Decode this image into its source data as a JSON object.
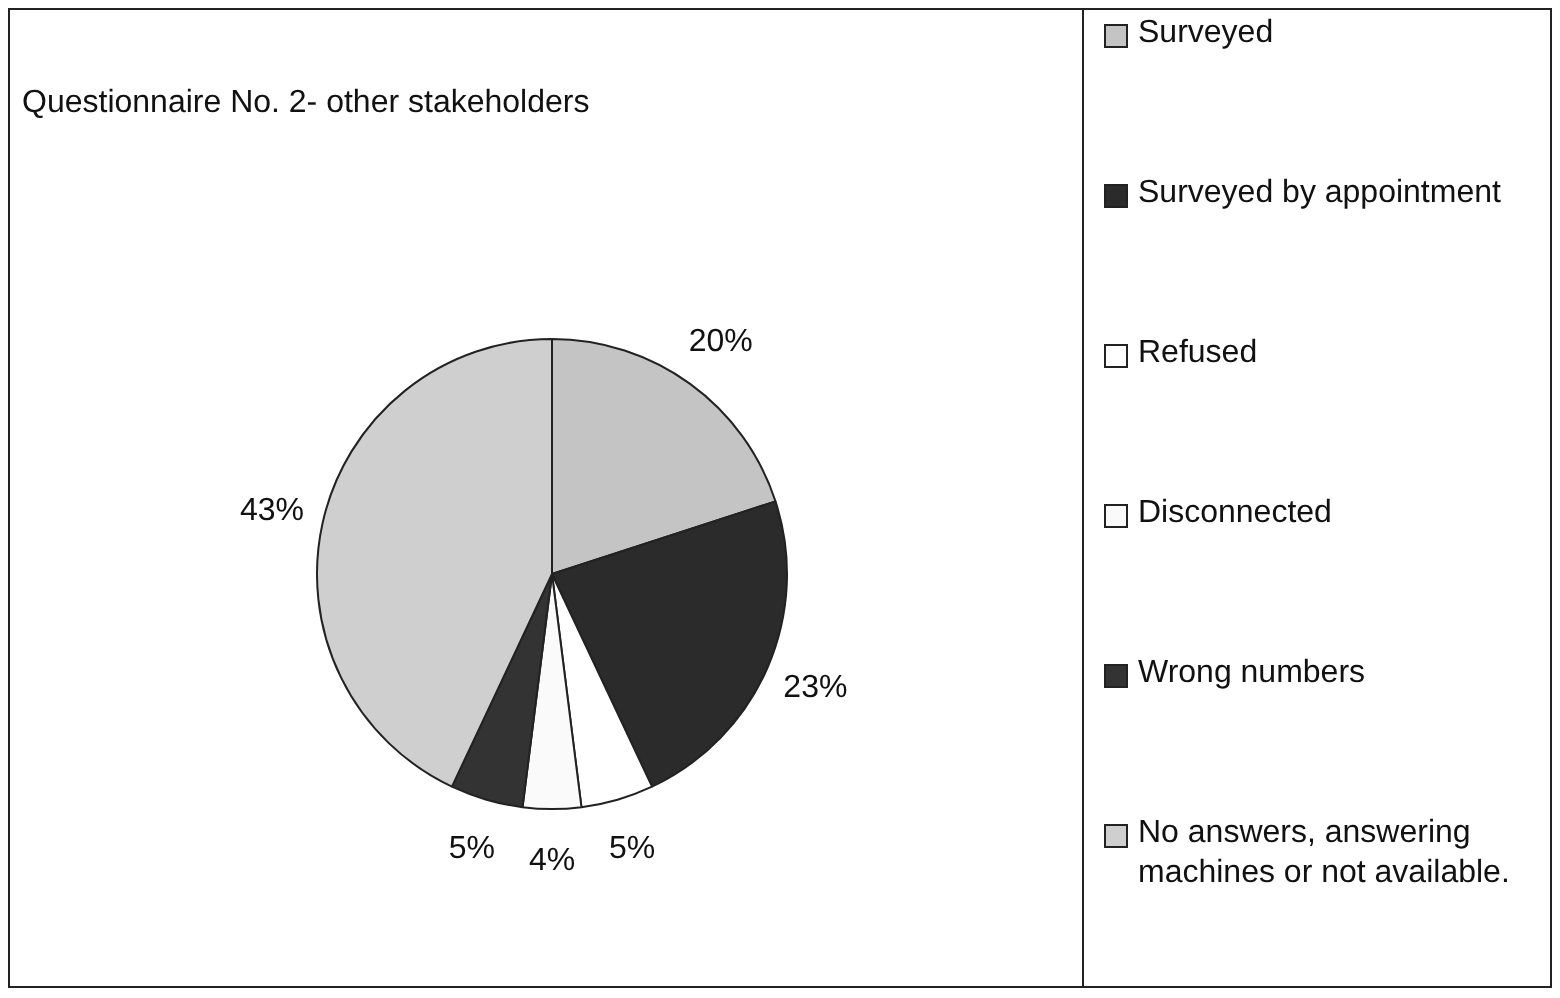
{
  "chart_data": {
    "type": "pie",
    "title": "Questionnaire  No. 2- other stakeholders",
    "categories": [
      "Surveyed",
      "Surveyed by appointment",
      "Refused",
      "Disconnected",
      "Wrong numbers",
      "No answers, answering machines or not available."
    ],
    "values": [
      20,
      23,
      5,
      4,
      5,
      43
    ],
    "colors": [
      "#c4c4c4",
      "#2b2b2b",
      "#ffffff",
      "#fafafa",
      "#333333",
      "#cfcfcf"
    ],
    "value_labels": [
      "20%",
      "23%",
      "5%",
      "4%",
      "5%",
      "43%"
    ],
    "legend": "right"
  }
}
